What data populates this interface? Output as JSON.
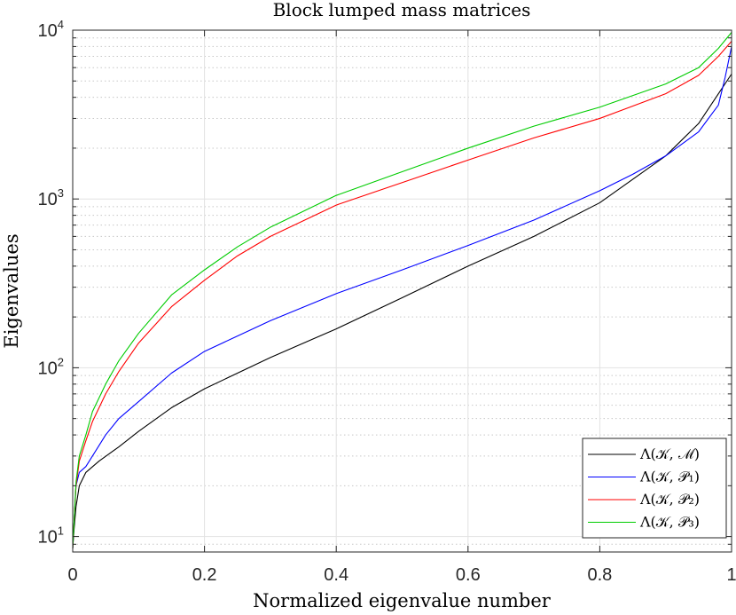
{
  "chart_data": {
    "type": "line",
    "title": "Block lumped mass matrices",
    "xlabel": "Normalized eigenvalue number",
    "ylabel": "Eigenvalues",
    "xlim": [
      0,
      1
    ],
    "ylim": [
      8.1,
      10000
    ],
    "yscale": "log",
    "grid": true,
    "minor_grid": true,
    "legend_position": "bottom-right",
    "x_ticks": [
      {
        "value": 0,
        "label": "0"
      },
      {
        "value": 0.2,
        "label": "0.2"
      },
      {
        "value": 0.4,
        "label": "0.4"
      },
      {
        "value": 0.6,
        "label": "0.6"
      },
      {
        "value": 0.8,
        "label": "0.8"
      },
      {
        "value": 1,
        "label": "1"
      }
    ],
    "y_ticks": [
      {
        "value": 10,
        "base": "10",
        "exp": "1"
      },
      {
        "value": 100,
        "base": "10",
        "exp": "2"
      },
      {
        "value": 1000,
        "base": "10",
        "exp": "3"
      },
      {
        "value": 10000,
        "base": "10",
        "exp": "4"
      }
    ],
    "series": [
      {
        "name": "Λ(𝒦, ℳ)",
        "color": "#000000",
        "x": [
          0,
          0.002,
          0.005,
          0.01,
          0.02,
          0.04,
          0.07,
          0.1,
          0.15,
          0.2,
          0.3,
          0.4,
          0.5,
          0.6,
          0.7,
          0.8,
          0.9,
          0.95,
          0.98,
          1.0
        ],
        "y": [
          8.5,
          11,
          15,
          20,
          24,
          28,
          34,
          42,
          58,
          75,
          115,
          170,
          260,
          400,
          600,
          950,
          1800,
          2800,
          4200,
          5500
        ]
      },
      {
        "name": "Λ(𝒦, 𝒫₁)",
        "color": "#0000ff",
        "x": [
          0,
          0.002,
          0.005,
          0.01,
          0.02,
          0.03,
          0.05,
          0.07,
          0.1,
          0.15,
          0.2,
          0.3,
          0.4,
          0.5,
          0.6,
          0.7,
          0.8,
          0.85,
          0.9,
          0.95,
          0.98,
          0.99,
          1.0
        ],
        "y": [
          8.5,
          12,
          20,
          24,
          26,
          30,
          40,
          50,
          63,
          93,
          125,
          190,
          275,
          380,
          530,
          750,
          1120,
          1400,
          1800,
          2500,
          3600,
          5200,
          8000
        ]
      },
      {
        "name": "Λ(𝒦, 𝒫₂)",
        "color": "#ff0000",
        "x": [
          0,
          0.002,
          0.005,
          0.01,
          0.02,
          0.03,
          0.05,
          0.07,
          0.1,
          0.15,
          0.2,
          0.25,
          0.3,
          0.4,
          0.5,
          0.6,
          0.7,
          0.8,
          0.9,
          0.95,
          0.98,
          1.0
        ],
        "y": [
          8.5,
          12,
          20,
          28,
          37,
          48,
          70,
          95,
          140,
          230,
          330,
          460,
          600,
          920,
          1250,
          1700,
          2300,
          3000,
          4200,
          5400,
          7000,
          8600
        ]
      },
      {
        "name": "Λ(𝒦, 𝒫₃)",
        "color": "#00cc00",
        "x": [
          0,
          0.002,
          0.005,
          0.01,
          0.02,
          0.03,
          0.05,
          0.07,
          0.1,
          0.15,
          0.2,
          0.25,
          0.3,
          0.4,
          0.5,
          0.6,
          0.7,
          0.8,
          0.9,
          0.95,
          0.98,
          1.0
        ],
        "y": [
          8.5,
          12,
          21,
          30,
          40,
          55,
          80,
          110,
          160,
          270,
          380,
          520,
          680,
          1050,
          1450,
          2000,
          2700,
          3500,
          4800,
          6000,
          7800,
          9700
        ]
      }
    ]
  }
}
